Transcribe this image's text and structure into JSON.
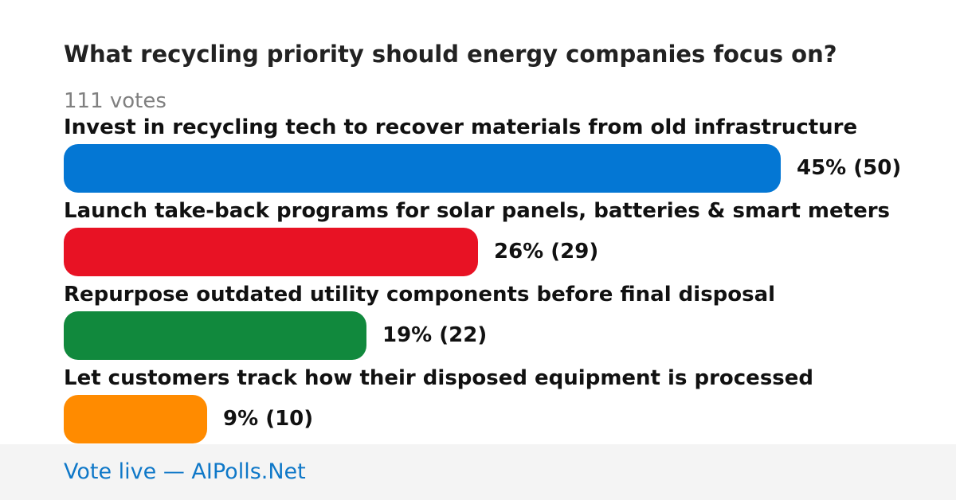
{
  "poll": {
    "question": "What recycling priority should energy companies focus on?",
    "votes_label": "111 votes"
  },
  "chart_data": {
    "type": "bar",
    "orientation": "horizontal",
    "categories": [
      "Invest in recycling tech to recover materials from old infrastructure",
      "Launch take-back programs for solar panels, batteries & smart meters",
      "Repurpose outdated utility components before final disposal",
      "Let customers track how their disposed equipment is processed"
    ],
    "values": [
      45,
      26,
      19,
      9
    ],
    "counts": [
      50,
      29,
      22,
      10
    ],
    "value_labels": [
      "45% (50)",
      "26% (29)",
      "19% (22)",
      "9% (10)"
    ],
    "colors": [
      "#0477d4",
      "#e81224",
      "#11893d",
      "#ff8b00"
    ],
    "title": "What recycling priority should energy companies focus on?",
    "xlabel": "",
    "ylabel": "",
    "xlim": [
      0,
      50
    ],
    "grid": false,
    "legend": "none"
  },
  "footer": {
    "link_text": "Vote live — AIPolls.Net"
  }
}
